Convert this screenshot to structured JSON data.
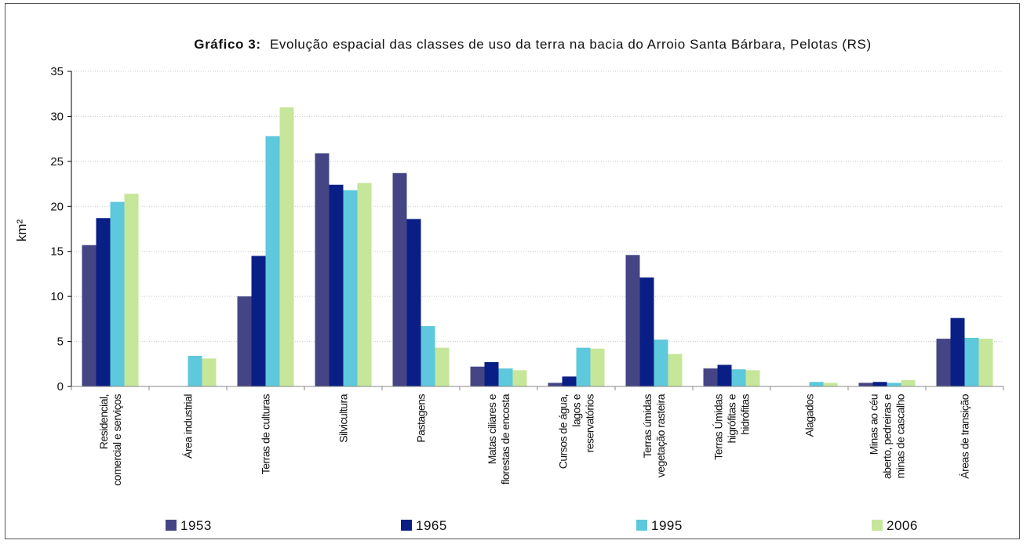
{
  "chart_data": {
    "type": "bar",
    "title_bold": "Gráfico 3:",
    "title": "Evolução espacial das classes de uso da terra na bacia do Arroio Santa Bárbara, Pelotas (RS)",
    "ylabel": "km²",
    "ylim": [
      0,
      35
    ],
    "yticks": [
      "0",
      "5",
      "10",
      "15",
      "20",
      "25",
      "30",
      "35"
    ],
    "grid": true,
    "legend_position": "bottom",
    "categories": [
      [
        "Residencial,",
        "comercial e serviços"
      ],
      [
        "Área industrial"
      ],
      [
        "Terras de culturas"
      ],
      [
        "Silvicultura"
      ],
      [
        "Pastagens"
      ],
      [
        "Matas ciliares e",
        "florestas de encosta"
      ],
      [
        "Cursos de água,",
        "lagos e",
        "reservatórios"
      ],
      [
        "Terras úmidas",
        "vegetação rasteira"
      ],
      [
        "Terras Úmidas",
        "higrófitas e",
        "hidrófitas"
      ],
      [
        "Alagados"
      ],
      [
        "Minas ao céu",
        "aberto, pedreiras e",
        "minas de cascalho"
      ],
      [
        "Áreas de transição"
      ]
    ],
    "series": [
      {
        "name": "1953",
        "color": "#454585",
        "values": [
          15.7,
          0,
          10.0,
          25.9,
          23.7,
          2.2,
          0.4,
          14.6,
          2.0,
          0,
          0.4,
          5.3
        ]
      },
      {
        "name": "1965",
        "color": "#0a1f85",
        "values": [
          18.7,
          0,
          14.5,
          22.4,
          18.6,
          2.7,
          1.1,
          12.1,
          2.4,
          0,
          0.5,
          7.6
        ]
      },
      {
        "name": "1995",
        "color": "#5ec8dc",
        "values": [
          20.5,
          3.4,
          27.8,
          21.8,
          6.7,
          2.0,
          4.3,
          5.2,
          1.9,
          0.5,
          0.4,
          5.4
        ]
      },
      {
        "name": "2006",
        "color": "#c6e69a",
        "values": [
          21.4,
          3.1,
          31.0,
          22.6,
          4.3,
          1.8,
          4.2,
          3.6,
          1.8,
          0.4,
          0.7,
          5.3
        ]
      }
    ]
  }
}
